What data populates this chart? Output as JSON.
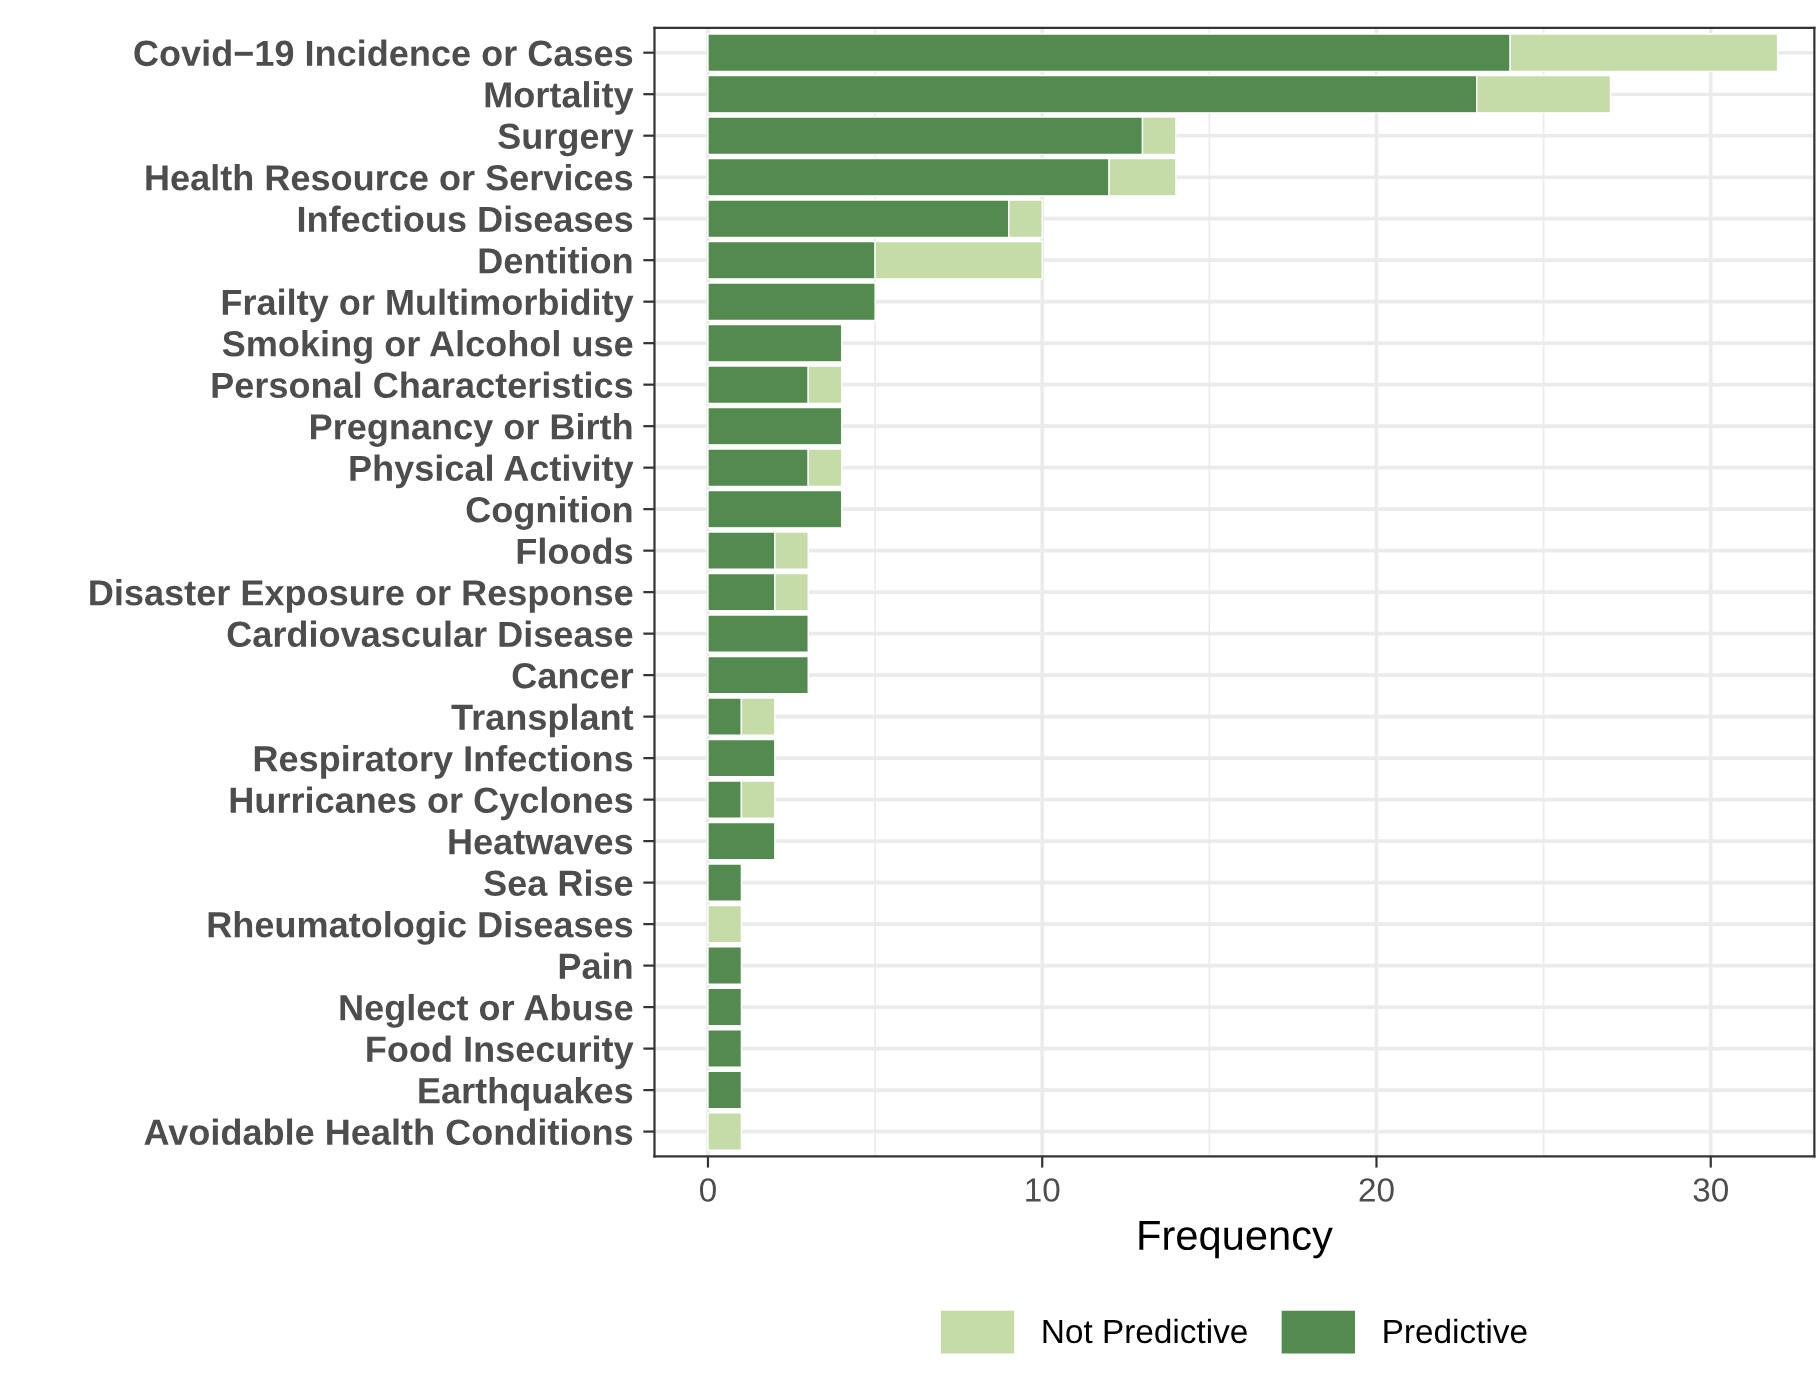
{
  "chart_data": {
    "type": "bar",
    "orientation": "horizontal",
    "stacked": true,
    "categories": [
      "Covid−19 Incidence or Cases",
      "Mortality",
      "Surgery",
      "Health Resource or Services",
      "Infectious Diseases",
      "Dentition",
      "Frailty or Multimorbidity",
      "Smoking or Alcohol use",
      "Personal Characteristics",
      "Pregnancy or Birth",
      "Physical Activity",
      "Cognition",
      "Floods",
      "Disaster Exposure or Response",
      "Cardiovascular Disease",
      "Cancer",
      "Transplant",
      "Respiratory Infections",
      "Hurricanes or Cyclones",
      "Heatwaves",
      "Sea Rise",
      "Rheumatologic Diseases",
      "Pain",
      "Neglect or Abuse",
      "Food Insecurity",
      "Earthquakes",
      "Avoidable Health Conditions"
    ],
    "series": [
      {
        "name": "Predictive",
        "color": "#538a4f",
        "values": [
          24,
          23,
          13,
          12,
          9,
          5,
          5,
          4,
          3,
          4,
          3,
          4,
          2,
          2,
          3,
          3,
          1,
          2,
          1,
          2,
          1,
          0,
          1,
          1,
          1,
          1,
          0
        ]
      },
      {
        "name": "Not Predictive",
        "color": "#c5dba8",
        "values": [
          8,
          4,
          1,
          2,
          1,
          5,
          0,
          0,
          1,
          0,
          1,
          0,
          1,
          1,
          0,
          0,
          1,
          0,
          1,
          0,
          0,
          1,
          0,
          0,
          0,
          0,
          1
        ]
      }
    ],
    "xlabel": "Frequency",
    "xlim": [
      -1.6,
      33.1
    ],
    "xticks": [
      0,
      10,
      20,
      30
    ],
    "grid": true,
    "legend": "bottom"
  }
}
